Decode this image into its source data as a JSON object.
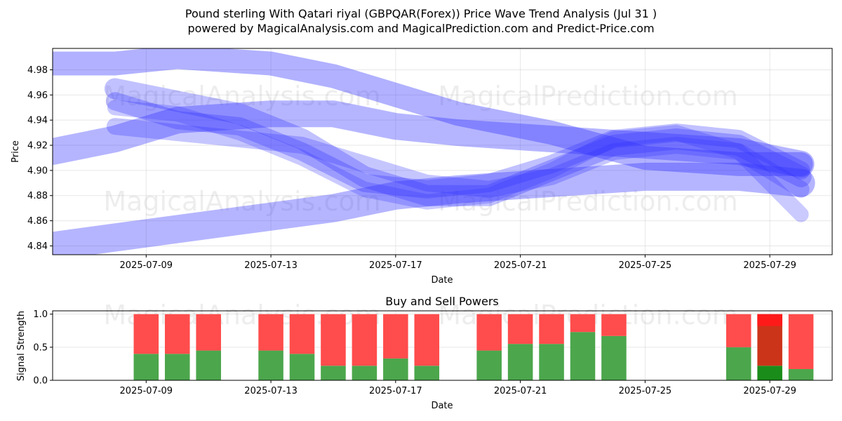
{
  "title_line1": "Pound sterling With Qatari riyal (GBPQAR(Forex)) Price Wave Trend Analysis (Jul 31 )",
  "title_line2": "powered by MagicalAnalysis.com and MagicalPrediction.com and Predict-Price.com",
  "watermarks": [
    "MagicalAnalysis.com",
    "MagicalPrediction.com"
  ],
  "colors": {
    "wave": "#3333ff",
    "buy": "#4ca64c",
    "sell": "#ff4c4c",
    "buy_dark": "#1a8c1a",
    "sell_dark": "#ff1a1a",
    "mid_dark": "#cc3419"
  },
  "chart_data": [
    {
      "type": "area",
      "title": "",
      "xlabel": "Date",
      "ylabel": "Price",
      "x_ticks": [
        "2025-07-09",
        "2025-07-13",
        "2025-07-17",
        "2025-07-21",
        "2025-07-25",
        "2025-07-29"
      ],
      "y_ticks": [
        "4.84",
        "4.86",
        "4.88",
        "4.90",
        "4.92",
        "4.94",
        "4.96",
        "4.98"
      ],
      "xlim": [
        "2025-07-06",
        "2025-07-31"
      ],
      "ylim": [
        4.833,
        4.997
      ],
      "grid": true,
      "series": [
        {
          "x": [
            "2025-07-06",
            "2025-07-08",
            "2025-07-10",
            "2025-07-13",
            "2025-07-15",
            "2025-07-17",
            "2025-07-19",
            "2025-07-22",
            "2025-07-25",
            "2025-07-28",
            "2025-07-30"
          ],
          "values": [
            4.985,
            4.985,
            4.99,
            4.985,
            4.975,
            4.96,
            4.945,
            4.93,
            4.91,
            4.905,
            4.905
          ]
        },
        {
          "x": [
            "2025-07-06",
            "2025-07-08",
            "2025-07-10",
            "2025-07-13",
            "2025-07-15",
            "2025-07-17",
            "2025-07-19",
            "2025-07-22",
            "2025-07-25",
            "2025-07-28",
            "2025-07-30"
          ],
          "values": [
            4.915,
            4.925,
            4.94,
            4.945,
            4.945,
            4.935,
            4.93,
            4.925,
            4.92,
            4.915,
            4.905
          ]
        },
        {
          "x": [
            "2025-07-06",
            "2025-07-09",
            "2025-07-12",
            "2025-07-15",
            "2025-07-17",
            "2025-07-19",
            "2025-07-22",
            "2025-07-25",
            "2025-07-28",
            "2025-07-30"
          ],
          "values": [
            4.84,
            4.85,
            4.86,
            4.87,
            4.88,
            4.885,
            4.89,
            4.895,
            4.895,
            4.89
          ]
        },
        {
          "x": [
            "2025-07-08",
            "2025-07-10",
            "2025-07-12",
            "2025-07-14",
            "2025-07-16",
            "2025-07-18",
            "2025-07-20",
            "2025-07-22",
            "2025-07-24",
            "2025-07-26",
            "2025-07-28",
            "2025-07-30"
          ],
          "values": [
            4.965,
            4.955,
            4.945,
            4.925,
            4.895,
            4.88,
            4.88,
            4.9,
            4.92,
            4.925,
            4.92,
            4.895
          ]
        },
        {
          "x": [
            "2025-07-08",
            "2025-07-10",
            "2025-07-12",
            "2025-07-14",
            "2025-07-16",
            "2025-07-18",
            "2025-07-20",
            "2025-07-22",
            "2025-07-24",
            "2025-07-26",
            "2025-07-28",
            "2025-07-30"
          ],
          "values": [
            4.955,
            4.94,
            4.935,
            4.915,
            4.89,
            4.885,
            4.89,
            4.905,
            4.925,
            4.93,
            4.925,
            4.9
          ]
        },
        {
          "x": [
            "2025-07-08",
            "2025-07-10",
            "2025-07-12",
            "2025-07-14",
            "2025-07-16",
            "2025-07-18",
            "2025-07-20",
            "2025-07-22",
            "2025-07-24",
            "2025-07-26",
            "2025-07-28",
            "2025-07-30"
          ],
          "values": [
            4.935,
            4.93,
            4.925,
            4.92,
            4.905,
            4.89,
            4.885,
            4.895,
            4.915,
            4.92,
            4.915,
            4.885
          ]
        },
        {
          "x": [
            "2025-07-08",
            "2025-07-10",
            "2025-07-12",
            "2025-07-14",
            "2025-07-16",
            "2025-07-18",
            "2025-07-20",
            "2025-07-22",
            "2025-07-24",
            "2025-07-26",
            "2025-07-28",
            "2025-07-30"
          ],
          "values": [
            4.95,
            4.945,
            4.93,
            4.91,
            4.885,
            4.875,
            4.88,
            4.9,
            4.925,
            4.93,
            4.915,
            4.865
          ]
        }
      ]
    },
    {
      "type": "bar",
      "title": "Buy and Sell Powers",
      "xlabel": "Date",
      "ylabel": "Signal Strength",
      "x_ticks": [
        "2025-07-09",
        "2025-07-13",
        "2025-07-17",
        "2025-07-21",
        "2025-07-25",
        "2025-07-29"
      ],
      "y_ticks": [
        "0.0",
        "0.5",
        "1.0"
      ],
      "xlim": [
        "2025-07-06",
        "2025-07-31"
      ],
      "ylim": [
        0,
        1.05
      ],
      "grid": true,
      "categories": [
        "2025-07-09",
        "2025-07-10",
        "2025-07-11",
        "2025-07-13",
        "2025-07-14",
        "2025-07-15",
        "2025-07-16",
        "2025-07-17",
        "2025-07-18",
        "2025-07-20",
        "2025-07-21",
        "2025-07-22",
        "2025-07-23",
        "2025-07-24",
        "2025-07-28",
        "2025-07-29",
        "2025-07-30"
      ],
      "series": [
        {
          "values": [
            0.4,
            0.4,
            0.45,
            0.45,
            0.4,
            0.22,
            0.22,
            0.33,
            0.22,
            0.45,
            0.55,
            0.55,
            0.73,
            0.67,
            0.5,
            0.22,
            0.17
          ]
        },
        {
          "values": [
            0.6,
            0.6,
            0.55,
            0.55,
            0.6,
            0.78,
            0.78,
            0.67,
            0.78,
            0.55,
            0.45,
            0.45,
            0.27,
            0.33,
            0.5,
            0.78,
            0.83
          ]
        }
      ]
    }
  ]
}
